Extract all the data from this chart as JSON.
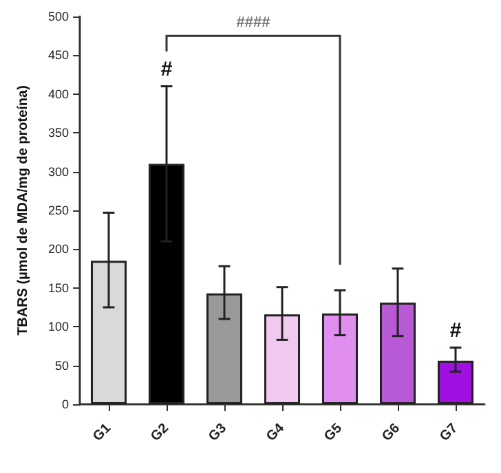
{
  "chart_data": {
    "type": "bar",
    "ylabel": "TBARS (µmol de MDA/mg de proteína)",
    "categories": [
      "G1",
      "G2",
      "G3",
      "G4",
      "G5",
      "G6",
      "G7"
    ],
    "values": [
      185,
      310,
      143,
      116,
      117,
      131,
      56
    ],
    "errors": [
      [
        125,
        247
      ],
      [
        210,
        410
      ],
      [
        110,
        178
      ],
      [
        83,
        151
      ],
      [
        89,
        147
      ],
      [
        88,
        175
      ],
      [
        42,
        73
      ]
    ],
    "colors": [
      "#d9d9d9",
      "#000000",
      "#999999",
      "#f0c8f0",
      "#e08ef0",
      "#b85ad6",
      "#a010e0"
    ],
    "ylim": [
      0,
      500
    ],
    "yticks": [
      0,
      50,
      100,
      150,
      200,
      250,
      300,
      350,
      400,
      450,
      500
    ],
    "grid": false,
    "annotations": [
      "#",
      "#",
      "####"
    ]
  }
}
